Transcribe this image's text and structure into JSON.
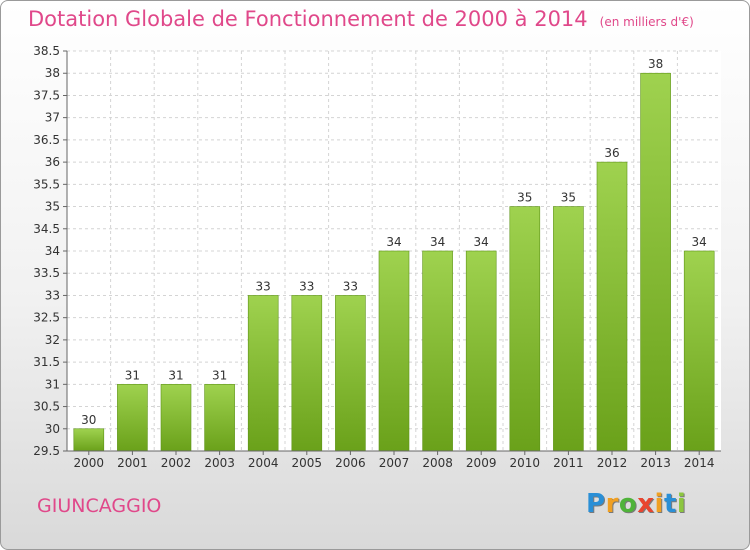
{
  "chart_data": {
    "type": "bar",
    "title": "Dotation Globale de Fonctionnement de 2000 à 2014",
    "subtitle": "(en milliers d'€)",
    "categories": [
      "2000",
      "2001",
      "2002",
      "2003",
      "2004",
      "2005",
      "2006",
      "2007",
      "2008",
      "2009",
      "2010",
      "2011",
      "2012",
      "2013",
      "2014"
    ],
    "values": [
      30,
      31,
      31,
      31,
      33,
      33,
      33,
      34,
      34,
      34,
      35,
      35,
      36,
      38,
      34
    ],
    "bar_labels": [
      "30",
      "31",
      "31",
      "31",
      "33",
      "33",
      "33",
      "34",
      "34",
      "34",
      "35",
      "35",
      "36",
      "38",
      "34"
    ],
    "ylim": [
      29.5,
      38.5
    ],
    "yticks": [
      29.5,
      30,
      30.5,
      31,
      31.5,
      32,
      32.5,
      33,
      33.5,
      34,
      34.5,
      35,
      35.5,
      36,
      36.5,
      37,
      37.5,
      38,
      38.5
    ],
    "ytick_labels": [
      "29.5",
      "30",
      "30.5",
      "31",
      "31.5",
      "32",
      "32.5",
      "33",
      "33.5",
      "34",
      "34.5",
      "35",
      "35.5",
      "36",
      "36.5",
      "37",
      "37.5",
      "38",
      "38.5"
    ],
    "grid": true,
    "bar_color": "#8bc83a",
    "xlabel": "",
    "ylabel": ""
  },
  "commune": "GIUNCAGGIO",
  "logo": {
    "letters": [
      "P",
      "r",
      "o",
      "x",
      "i",
      "t",
      "i"
    ],
    "colors": [
      "#2a8fd6",
      "#f0a023",
      "#4fb33a",
      "#e8452f",
      "#f0a023",
      "#2a8fd6",
      "#8cc63f"
    ]
  },
  "colors": {
    "title": "#e0488a",
    "axis": "#666666",
    "grid": "#d4d4d4"
  }
}
